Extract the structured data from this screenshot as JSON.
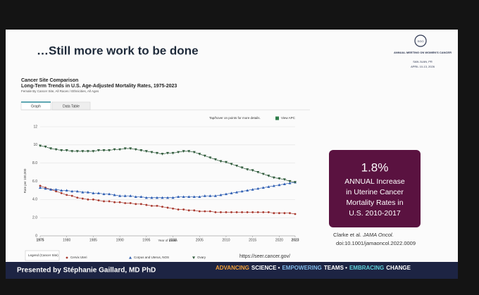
{
  "slide": {
    "title": "…Still more work to be done",
    "presenter": "Presented by Stéphanie Gaillard, MD PhD",
    "tagline": [
      {
        "text": "ADVANCING",
        "color": "#f2a03a"
      },
      {
        "text": "SCIENCE •",
        "color": "#ffffff"
      },
      {
        "text": "EMPOWERING",
        "color": "#7fb8e8"
      },
      {
        "text": "TEAMS •",
        "color": "#ffffff"
      },
      {
        "text": "EMBRACING",
        "color": "#5fd0d8"
      },
      {
        "text": "CHANGE",
        "color": "#ffffff"
      }
    ],
    "logo": {
      "mark": "SGO",
      "name": "ANNUAL MEETING ON WOMEN'S CANCER",
      "place": "SAN JUAN, PR",
      "date": "APRIL 10-13, 2026"
    }
  },
  "callout": {
    "headline": "1.8%",
    "lines": [
      "ANNUAL Increase",
      "in Uterine Cancer",
      "Mortality Rates in",
      "U.S. 2010-2017"
    ]
  },
  "citation": {
    "authors": "Clarke et al.",
    "journal": "JAMA Oncol.",
    "doi": "doi:10.1001/jamaoncol.2022.0009"
  },
  "source_url": "https://seer.cancer.gov/",
  "chart_data": {
    "type": "line",
    "title": "Cancer Site Comparison",
    "subtitle": "Long-Term Trends in U.S. Age-Adjusted Mortality Rates, 1975-2023",
    "note": "Female By Cancer Site, All Races / Ethnicities, All Ages",
    "tabs": [
      "Graph",
      "Data Table"
    ],
    "hint": "Tap/hover on points for more details.",
    "apc_label": "View APC",
    "legend_title": "Legend (Cancer Site)",
    "xlabel": "Year of Death",
    "ylabel": "Rate per 100,000",
    "xlim": [
      1975,
      2023
    ],
    "xticks": [
      1975,
      1980,
      1985,
      1990,
      1995,
      2000,
      2005,
      2010,
      2015,
      2020,
      2023
    ],
    "ylim": [
      0,
      12
    ],
    "yticks": [
      0,
      {
        "value": 2,
        "label": "2.0"
      },
      {
        "value": 4,
        "label": "4.0"
      },
      {
        "value": 6,
        "label": "6.0"
      },
      {
        "value": 8,
        "label": "8.0"
      },
      10,
      12
    ],
    "grid": true,
    "x": [
      1975,
      1976,
      1977,
      1978,
      1979,
      1980,
      1981,
      1982,
      1983,
      1984,
      1985,
      1986,
      1987,
      1988,
      1989,
      1990,
      1991,
      1992,
      1993,
      1994,
      1995,
      1996,
      1997,
      1998,
      1999,
      2000,
      2001,
      2002,
      2003,
      2004,
      2005,
      2006,
      2007,
      2008,
      2009,
      2010,
      2011,
      2012,
      2013,
      2014,
      2015,
      2016,
      2017,
      2018,
      2019,
      2020,
      2021,
      2022,
      2023
    ],
    "series": [
      {
        "name": "Cervix Uteri",
        "color": "#a8372c",
        "marker": "circle",
        "values": [
          5.5,
          5.3,
          5.1,
          4.9,
          4.7,
          4.5,
          4.4,
          4.2,
          4.1,
          4.0,
          4.0,
          3.9,
          3.8,
          3.8,
          3.7,
          3.7,
          3.6,
          3.6,
          3.5,
          3.5,
          3.4,
          3.3,
          3.3,
          3.2,
          3.1,
          3.0,
          2.9,
          2.9,
          2.8,
          2.8,
          2.7,
          2.7,
          2.7,
          2.6,
          2.6,
          2.6,
          2.6,
          2.6,
          2.6,
          2.6,
          2.6,
          2.6,
          2.6,
          2.6,
          2.5,
          2.5,
          2.5,
          2.5,
          2.4
        ]
      },
      {
        "name": "Corpus and Uterus, NOS",
        "color": "#2f5fb3",
        "marker": "triangle-up",
        "values": [
          5.3,
          5.2,
          5.1,
          5.1,
          5.0,
          5.0,
          4.9,
          4.9,
          4.8,
          4.8,
          4.7,
          4.7,
          4.6,
          4.6,
          4.5,
          4.4,
          4.4,
          4.4,
          4.3,
          4.3,
          4.2,
          4.2,
          4.2,
          4.2,
          4.2,
          4.2,
          4.3,
          4.3,
          4.3,
          4.3,
          4.3,
          4.4,
          4.4,
          4.4,
          4.5,
          4.6,
          4.7,
          4.8,
          4.9,
          5.0,
          5.1,
          5.2,
          5.3,
          5.4,
          5.5,
          5.6,
          5.7,
          5.8,
          5.9
        ]
      },
      {
        "name": "Ovary",
        "color": "#2e5a3a",
        "marker": "triangle-down",
        "values": [
          9.9,
          9.8,
          9.6,
          9.5,
          9.4,
          9.4,
          9.3,
          9.3,
          9.3,
          9.3,
          9.3,
          9.4,
          9.4,
          9.4,
          9.5,
          9.5,
          9.6,
          9.6,
          9.5,
          9.4,
          9.3,
          9.2,
          9.1,
          9.0,
          9.1,
          9.1,
          9.2,
          9.3,
          9.3,
          9.2,
          9.0,
          8.8,
          8.6,
          8.4,
          8.2,
          8.1,
          7.9,
          7.7,
          7.5,
          7.3,
          7.2,
          7.0,
          6.8,
          6.6,
          6.4,
          6.3,
          6.2,
          6.0,
          5.9
        ]
      }
    ]
  }
}
